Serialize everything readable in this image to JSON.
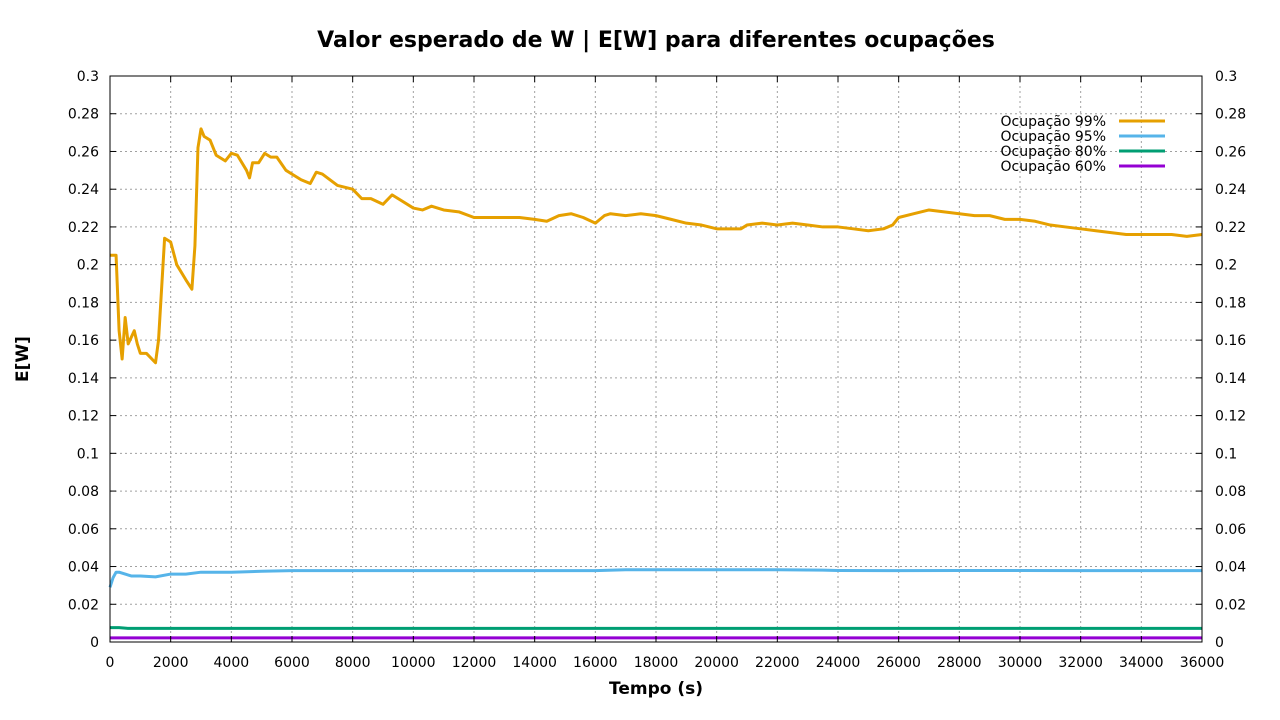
{
  "chart_data": {
    "type": "line",
    "title": "Valor esperado de W | E[W] para diferentes ocupações",
    "xlabel": "Tempo (s)",
    "ylabel": "E[W]",
    "xlim": [
      0,
      36000
    ],
    "ylim": [
      0,
      0.3
    ],
    "x_ticks": [
      "0",
      "2000",
      "4000",
      "6000",
      "8000",
      "10000",
      "12000",
      "14000",
      "16000",
      "18000",
      "20000",
      "22000",
      "24000",
      "26000",
      "28000",
      "30000",
      "32000",
      "34000",
      "36000"
    ],
    "y_ticks": [
      "0",
      "0.02",
      "0.04",
      "0.06",
      "0.08",
      "0.1",
      "0.12",
      "0.14",
      "0.16",
      "0.18",
      "0.2",
      "0.22",
      "0.24",
      "0.26",
      "0.28",
      "0.3"
    ],
    "grid": true,
    "legend_position": "top-right",
    "series": [
      {
        "name": "Ocupação 99%",
        "color": "#e6a000",
        "x": [
          0,
          200,
          300,
          400,
          500,
          600,
          800,
          900,
          1000,
          1200,
          1500,
          1600,
          1800,
          2000,
          2200,
          2500,
          2700,
          2800,
          2900,
          3000,
          3100,
          3300,
          3500,
          3800,
          4000,
          4200,
          4500,
          4600,
          4700,
          4900,
          5100,
          5300,
          5500,
          5800,
          6000,
          6300,
          6600,
          6800,
          7000,
          7500,
          8000,
          8300,
          8600,
          9000,
          9300,
          9600,
          10000,
          10300,
          10600,
          11000,
          11500,
          12000,
          12500,
          13000,
          13500,
          14000,
          14400,
          14800,
          15200,
          15600,
          16000,
          16300,
          16500,
          17000,
          17500,
          18000,
          18500,
          19000,
          19500,
          20000,
          20500,
          20800,
          21000,
          21500,
          22000,
          22500,
          23000,
          23500,
          24000,
          24500,
          25000,
          25500,
          25800,
          26000,
          26500,
          27000,
          27500,
          28000,
          28500,
          29000,
          29500,
          30000,
          30500,
          31000,
          31500,
          32000,
          32500,
          33000,
          33500,
          34000,
          34500,
          35000,
          35500,
          36000
        ],
        "y": [
          0.205,
          0.205,
          0.165,
          0.15,
          0.172,
          0.158,
          0.165,
          0.158,
          0.153,
          0.153,
          0.148,
          0.16,
          0.214,
          0.212,
          0.2,
          0.192,
          0.187,
          0.21,
          0.262,
          0.272,
          0.268,
          0.266,
          0.258,
          0.255,
          0.259,
          0.258,
          0.25,
          0.246,
          0.254,
          0.254,
          0.259,
          0.257,
          0.257,
          0.25,
          0.248,
          0.245,
          0.243,
          0.249,
          0.248,
          0.242,
          0.24,
          0.235,
          0.235,
          0.232,
          0.237,
          0.234,
          0.23,
          0.229,
          0.231,
          0.229,
          0.228,
          0.225,
          0.225,
          0.225,
          0.225,
          0.224,
          0.223,
          0.226,
          0.227,
          0.225,
          0.222,
          0.226,
          0.227,
          0.226,
          0.227,
          0.226,
          0.224,
          0.222,
          0.221,
          0.219,
          0.219,
          0.219,
          0.221,
          0.222,
          0.221,
          0.222,
          0.221,
          0.22,
          0.22,
          0.219,
          0.218,
          0.219,
          0.221,
          0.225,
          0.227,
          0.229,
          0.228,
          0.227,
          0.226,
          0.226,
          0.224,
          0.224,
          0.223,
          0.221,
          0.22,
          0.219,
          0.218,
          0.217,
          0.216,
          0.216,
          0.216,
          0.216,
          0.215,
          0.216
        ]
      },
      {
        "name": "Ocupação 95%",
        "color": "#56b4e9",
        "x": [
          0,
          100,
          200,
          300,
          500,
          700,
          1000,
          1500,
          2000,
          2500,
          3000,
          4000,
          5000,
          6000,
          8000,
          10000,
          12000,
          14000,
          16000,
          17000,
          20000,
          22000,
          23500,
          24000,
          26000,
          28000,
          30000,
          32000,
          34000,
          36000
        ],
        "y": [
          0.029,
          0.034,
          0.037,
          0.037,
          0.036,
          0.035,
          0.035,
          0.0345,
          0.036,
          0.036,
          0.037,
          0.037,
          0.0375,
          0.0378,
          0.0378,
          0.0378,
          0.0378,
          0.0378,
          0.0378,
          0.0383,
          0.0383,
          0.0383,
          0.0381,
          0.0379,
          0.0378,
          0.0379,
          0.0379,
          0.0378,
          0.0378,
          0.0378
        ]
      },
      {
        "name": "Ocupação 80%",
        "color": "#009e73",
        "x": [
          0,
          300,
          600,
          2000,
          10000,
          20000,
          36000
        ],
        "y": [
          0.0076,
          0.0076,
          0.0072,
          0.0072,
          0.0072,
          0.0072,
          0.0072
        ]
      },
      {
        "name": "Ocupação 60%",
        "color": "#9400d3",
        "x": [
          0,
          36000
        ],
        "y": [
          0.0022,
          0.0022
        ]
      }
    ]
  }
}
